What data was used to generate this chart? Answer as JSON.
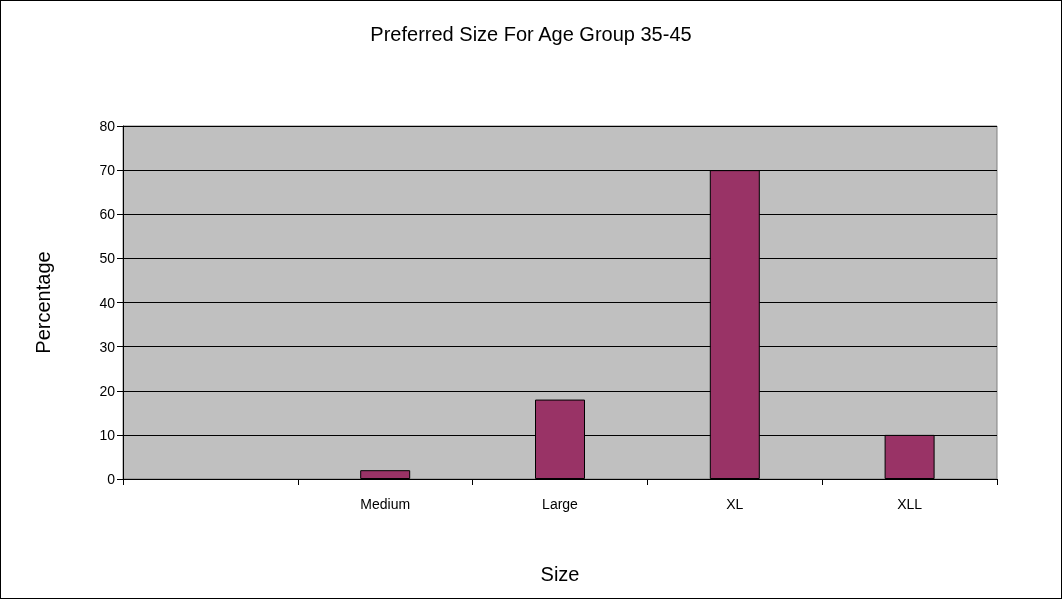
{
  "chart_data": {
    "type": "bar",
    "title": "Preferred Size For Age Group 35-45",
    "xlabel": "Size",
    "ylabel": "Percentage",
    "categories": [
      null,
      "Medium",
      "Large",
      "XL",
      "XLL"
    ],
    "values": [
      null,
      2,
      18,
      70,
      10
    ],
    "color": "#993366",
    "ylim": [
      0,
      80
    ],
    "yticks": [
      0,
      10,
      20,
      30,
      40,
      50,
      60,
      70,
      80
    ],
    "grid": "y"
  }
}
